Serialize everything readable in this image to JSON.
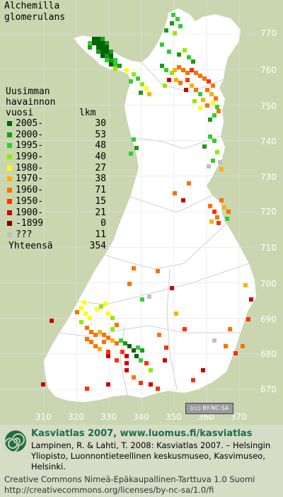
{
  "title": [
    "Alchemilla",
    "glomerulans"
  ],
  "legend": {
    "header": [
      "Uusimman",
      "havainnon",
      "vuosi"
    ],
    "count_header": "lkm",
    "rows": [
      {
        "label": "2005-",
        "count": "30",
        "color": "#006400"
      },
      {
        "label": "2000-",
        "count": "53",
        "color": "#1a9a1a"
      },
      {
        "label": "1995-",
        "count": "48",
        "color": "#33cc33"
      },
      {
        "label": "1990-",
        "count": "40",
        "color": "#99e600"
      },
      {
        "label": "1980-",
        "count": "27",
        "color": "#ffff00"
      },
      {
        "label": "1970-",
        "count": "38",
        "color": "#ffb000"
      },
      {
        "label": "1960-",
        "count": "71",
        "color": "#ff7000"
      },
      {
        "label": "1950-",
        "count": "15",
        "color": "#ff3000"
      },
      {
        "label": "1900-",
        "count": "21",
        "color": "#cc0000"
      },
      {
        "label": "-1899",
        "count": "0",
        "color": "#7a0000"
      },
      {
        "label": "???",
        "count": "11",
        "color": "#c0c0c0"
      }
    ],
    "total_label": "Yhteensä",
    "total": "354"
  },
  "axes": {
    "x_ticks": [
      "310",
      "320",
      "330",
      "340",
      "350",
      "360",
      "370"
    ],
    "y_ticks": [
      "770",
      "760",
      "750",
      "740",
      "730",
      "720",
      "710",
      "700",
      "690",
      "680",
      "670"
    ]
  },
  "license_badge": "(cc) BY-NC-SA",
  "footer": {
    "line1": "Kasviatlas 2007, www.luomus.fi/kasviatlas",
    "line2": "Lampinen, R. & Lahti, T. 2008: Kasviatlas 2007. – Helsingin Yliopisto, Luonnontieteellinen keskusmuseo, Kasvimuseo, Helsinki.",
    "line3": "Creative Commons Nimeä-Epäkaupallinen-Tarttuva 1.0 Suomi",
    "line4": "http://creativecommons.org/licenses/by-nc-sa/1.0/fi"
  },
  "map_colors": {
    "land": "#ffffff",
    "background": "#c9d6b0",
    "grid": "#d4d4d4",
    "border": "#bdbdbd"
  }
}
